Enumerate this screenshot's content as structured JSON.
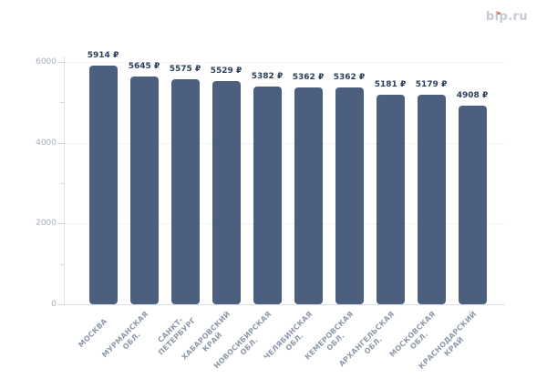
{
  "logo": {
    "text": "bip.ru",
    "text_color": "#c5cad6",
    "dot_color": "#ec7a58"
  },
  "chart_data": {
    "type": "bar",
    "title": "",
    "xlabel": "",
    "ylabel": "",
    "categories": [
      "МОСКВА",
      "МУРМАНСКАЯ\nОБЛ.",
      "САНКТ-\nПЕТЕРБУРГ",
      "ХАБАРОВСКИЙ\nКРАЙ",
      "НОВОСИБИРСКАЯ\nОБЛ.",
      "ЧЕЛЯБИНСКАЯ\nОБЛ.",
      "КЕМЕРОВСКАЯ\nОБЛ.",
      "АРХАНГЕЛЬСКАЯ\nОБЛ.",
      "МОСКОВСКАЯ\nОБЛ.",
      "КРАСНОДАРСКИЙ\nКРАЙ"
    ],
    "values": [
      5914,
      5645,
      5575,
      5529,
      5382,
      5362,
      5362,
      5181,
      5179,
      4908
    ],
    "value_labels": [
      "5914 ₽",
      "5645 ₽",
      "5575 ₽",
      "5529 ₽",
      "5382 ₽",
      "5362 ₽",
      "5362 ₽",
      "5181 ₽",
      "5179 ₽",
      "4908 ₽"
    ],
    "currency_suffix": "₽",
    "ylim": [
      0,
      6000
    ],
    "yticks_major": [
      0,
      2000,
      4000,
      6000
    ],
    "ytick_labels": [
      "0",
      "2000",
      "4000",
      "6000"
    ],
    "yticks_minor": [
      1000,
      3000,
      5000
    ],
    "grid": "horizontal dotted at major ticks",
    "legend": "none",
    "bar_color": "#4d5f7f"
  }
}
